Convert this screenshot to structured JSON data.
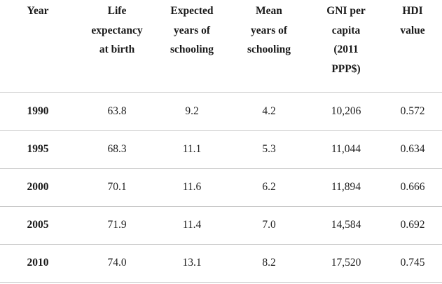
{
  "table": {
    "headers": [
      "Year",
      "Life\nexpectancy\nat birth",
      "Expected\nyears of\nschooling",
      "Mean\nyears of\nschooling",
      "GNI per\ncapita\n(2011\nPPP$)",
      "HDI\nvalue"
    ],
    "rows": [
      [
        "1990",
        "63.8",
        "9.2",
        "4.2",
        "10,206",
        "0.572"
      ],
      [
        "1995",
        "68.3",
        "11.1",
        "5.3",
        "11,044",
        "0.634"
      ],
      [
        "2000",
        "70.1",
        "11.6",
        "6.2",
        "11,894",
        "0.666"
      ],
      [
        "2005",
        "71.9",
        "11.4",
        "7.0",
        "14,584",
        "0.692"
      ],
      [
        "2010",
        "74.0",
        "13.1",
        "8.2",
        "17,520",
        "0.745"
      ]
    ]
  }
}
